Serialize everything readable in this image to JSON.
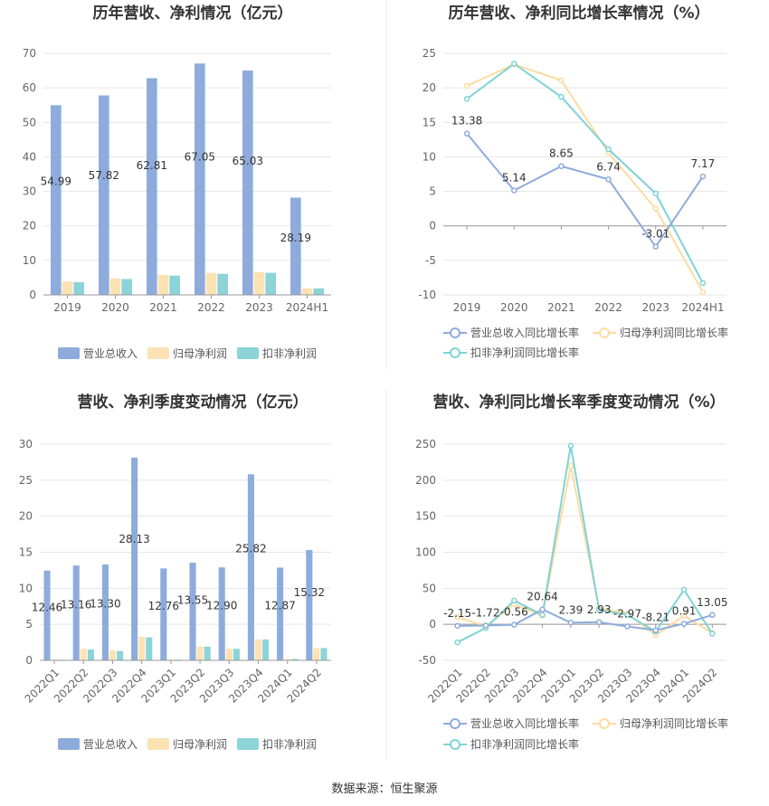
{
  "source_note": "数据来源：恒生聚源",
  "legend_bars": [
    "营业总收入",
    "归母净利润",
    "扣非净利润"
  ],
  "legend_lines": [
    "营业总收入同比增长率",
    "归母净利润同比增长率",
    "扣非净利润同比增长率"
  ],
  "colors": {
    "revenue": "#8eacdb",
    "net_profit": "#fde2b4",
    "deducted_profit": "#8cd4d8",
    "line_revenue": "#8eacdb",
    "line_net": "#fddc9f",
    "line_deducted": "#7fd3d6"
  },
  "chart_data": [
    {
      "type": "bar",
      "title": "历年营收、净利情况（亿元）",
      "categories": [
        "2019",
        "2020",
        "2021",
        "2022",
        "2023",
        "2024H1"
      ],
      "ylim": [
        0,
        70
      ],
      "yticks": [
        0,
        10,
        20,
        30,
        40,
        50,
        60,
        70
      ],
      "grid": true,
      "legend": "bottom",
      "series": [
        {
          "name": "营业总收入",
          "values": [
            54.99,
            57.82,
            62.81,
            67.05,
            65.03,
            28.19
          ],
          "labels": [
            "54.99",
            "57.82",
            "62.81",
            "67.05",
            "65.03",
            "28.19"
          ]
        },
        {
          "name": "归母净利润",
          "values": [
            3.9,
            4.8,
            5.8,
            6.4,
            6.6,
            1.9
          ]
        },
        {
          "name": "扣非净利润",
          "values": [
            3.7,
            4.6,
            5.6,
            6.1,
            6.4,
            1.9
          ]
        }
      ]
    },
    {
      "type": "line",
      "title": "历年营收、净利同比增长率情况（%）",
      "categories": [
        "2019",
        "2020",
        "2021",
        "2022",
        "2023",
        "2024H1"
      ],
      "ylim": [
        -10,
        25
      ],
      "yticks": [
        -10,
        -5,
        0,
        5,
        10,
        15,
        20,
        25
      ],
      "grid": true,
      "legend": "bottom",
      "series": [
        {
          "name": "营业总收入同比增长率",
          "values": [
            13.38,
            5.14,
            8.65,
            6.74,
            -3.01,
            7.17
          ],
          "labels": [
            "13.38",
            "5.14",
            "8.65",
            "6.74",
            "-3.01",
            "7.17"
          ]
        },
        {
          "name": "归母净利润同比增长率",
          "values": [
            20.3,
            23.4,
            21.1,
            10.6,
            2.5,
            -9.6
          ]
        },
        {
          "name": "扣非净利润同比增长率",
          "values": [
            18.4,
            23.5,
            18.7,
            11.1,
            4.7,
            -8.3
          ]
        }
      ]
    },
    {
      "type": "bar",
      "title": "营收、净利季度变动情况（亿元）",
      "categories": [
        "2022Q1",
        "2022Q2",
        "2022Q3",
        "2022Q4",
        "2023Q1",
        "2023Q2",
        "2023Q3",
        "2023Q4",
        "2024Q1",
        "2024Q2"
      ],
      "ylim": [
        0,
        30
      ],
      "yticks": [
        0,
        5,
        10,
        15,
        20,
        25,
        30
      ],
      "grid": true,
      "legend": "bottom",
      "series": [
        {
          "name": "营业总收入",
          "values": [
            12.46,
            13.16,
            13.3,
            28.13,
            12.76,
            13.55,
            12.9,
            25.82,
            12.87,
            15.32
          ],
          "labels": [
            "12.46",
            "13.16",
            "13.30",
            "28.13",
            "12.76",
            "13.55",
            "12.90",
            "25.82",
            "12.87",
            "15.32"
          ]
        },
        {
          "name": "归母净利润",
          "values": [
            0.1,
            1.6,
            1.4,
            3.3,
            0.1,
            1.9,
            1.6,
            2.9,
            0.2,
            1.7
          ]
        },
        {
          "name": "扣非净利润",
          "values": [
            0.1,
            1.5,
            1.3,
            3.2,
            0.1,
            1.9,
            1.6,
            2.9,
            0.2,
            1.7
          ]
        }
      ]
    },
    {
      "type": "line",
      "title": "营收、净利同比增长率季度变动情况（%）",
      "categories": [
        "2022Q1",
        "2022Q2",
        "2022Q3",
        "2022Q4",
        "2023Q1",
        "2023Q2",
        "2023Q3",
        "2023Q4",
        "2024Q1",
        "2024Q2"
      ],
      "ylim": [
        -50,
        250
      ],
      "yticks": [
        -50,
        0,
        50,
        100,
        150,
        200,
        250
      ],
      "grid": true,
      "legend": "bottom",
      "series": [
        {
          "name": "营业总收入同比增长率",
          "values": [
            -2.15,
            -1.72,
            -0.56,
            20.64,
            2.39,
            2.93,
            -2.97,
            -8.21,
            0.91,
            13.05
          ],
          "labels": [
            "-2.15",
            "-1.72",
            "-0.56",
            "20.64",
            "2.39",
            "2.93",
            "-2.97",
            "-8.21",
            "0.91",
            "13.05"
          ]
        },
        {
          "name": "归母净利润同比增长率",
          "values": [
            10,
            -3,
            28,
            12,
            220,
            22,
            15,
            -15,
            12,
            -12
          ]
        },
        {
          "name": "扣非净利润同比增长率",
          "values": [
            -25,
            -5,
            33,
            13,
            248,
            20,
            13,
            -10,
            48,
            -13
          ]
        }
      ]
    }
  ]
}
